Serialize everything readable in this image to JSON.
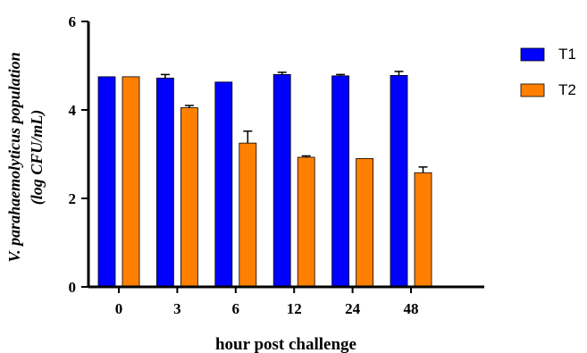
{
  "chart_data": {
    "type": "bar",
    "categories": [
      "0",
      "3",
      "6",
      "12",
      "24",
      "48"
    ],
    "series": [
      {
        "name": "T1",
        "color": "#0000FF",
        "values": [
          4.75,
          4.72,
          4.63,
          4.8,
          4.77,
          4.78
        ],
        "errors": [
          0.0,
          0.08,
          0.0,
          0.05,
          0.03,
          0.09
        ]
      },
      {
        "name": "T2",
        "color": "#FF8000",
        "values": [
          4.75,
          4.05,
          3.25,
          2.93,
          2.9,
          2.58
        ],
        "errors": [
          0.0,
          0.05,
          0.27,
          0.03,
          0.0,
          0.13
        ]
      }
    ],
    "xlabel": "hour post challenge",
    "ylabel_line1": "V. parahaemolyticus population",
    "ylabel_line2": "(log CFU/mL)",
    "ylim": [
      0,
      6
    ],
    "yticks": [
      "0",
      "2",
      "4",
      "6"
    ],
    "legend_position": "top-right",
    "grid": false
  }
}
